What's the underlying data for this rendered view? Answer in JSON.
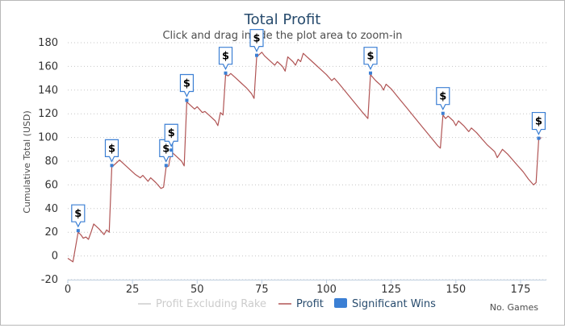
{
  "chart_data": {
    "type": "line",
    "title": "Total Profit",
    "subtitle": "Click and drag inside the plot area to zoom-in",
    "xlabel": "No. Games",
    "ylabel": "Cumulative Total (USD)",
    "xlim": [
      0,
      185
    ],
    "ylim": [
      -20,
      180
    ],
    "x_ticks": [
      0,
      25,
      50,
      75,
      100,
      125,
      150,
      175
    ],
    "y_ticks": [
      -20,
      0,
      20,
      40,
      60,
      80,
      100,
      120,
      140,
      160,
      180
    ],
    "grid": "horizontal-dotted",
    "legend_position": "bottom",
    "legend": [
      {
        "label": "Profit Excluding Rake",
        "color": "#cccccc",
        "type": "line",
        "state": "hidden"
      },
      {
        "label": "Profit",
        "color": "#b05454",
        "type": "line",
        "state": "visible"
      },
      {
        "label": "Significant Wins",
        "color": "#3b7fd4",
        "type": "box",
        "state": "visible"
      }
    ],
    "series": [
      {
        "name": "Profit",
        "color": "#b05454",
        "points": [
          [
            0,
            -2
          ],
          [
            2,
            -5
          ],
          [
            4,
            20
          ],
          [
            5,
            18
          ],
          [
            6,
            15
          ],
          [
            7,
            16
          ],
          [
            8,
            14
          ],
          [
            9,
            20
          ],
          [
            10,
            27
          ],
          [
            12,
            23
          ],
          [
            14,
            18
          ],
          [
            15,
            22
          ],
          [
            16,
            20
          ],
          [
            17,
            75
          ],
          [
            18,
            77
          ],
          [
            19,
            79
          ],
          [
            20,
            81
          ],
          [
            22,
            77
          ],
          [
            24,
            73
          ],
          [
            26,
            69
          ],
          [
            28,
            66
          ],
          [
            29,
            68
          ],
          [
            31,
            63
          ],
          [
            32,
            66
          ],
          [
            34,
            62
          ],
          [
            36,
            57
          ],
          [
            37,
            58
          ],
          [
            38,
            75
          ],
          [
            39,
            76
          ],
          [
            40,
            88
          ],
          [
            42,
            84
          ],
          [
            44,
            80
          ],
          [
            45,
            76
          ],
          [
            46,
            130
          ],
          [
            48,
            126
          ],
          [
            49,
            124
          ],
          [
            50,
            126
          ],
          [
            52,
            121
          ],
          [
            53,
            122
          ],
          [
            55,
            118
          ],
          [
            57,
            114
          ],
          [
            58,
            110
          ],
          [
            59,
            121
          ],
          [
            60,
            119
          ],
          [
            61,
            153
          ],
          [
            62,
            152
          ],
          [
            63,
            154
          ],
          [
            65,
            150
          ],
          [
            67,
            146
          ],
          [
            69,
            142
          ],
          [
            71,
            137
          ],
          [
            72,
            133
          ],
          [
            73,
            168
          ],
          [
            74,
            170
          ],
          [
            75,
            172
          ],
          [
            76,
            169
          ],
          [
            78,
            165
          ],
          [
            80,
            161
          ],
          [
            81,
            164
          ],
          [
            83,
            160
          ],
          [
            84,
            156
          ],
          [
            85,
            168
          ],
          [
            87,
            164
          ],
          [
            88,
            161
          ],
          [
            89,
            166
          ],
          [
            90,
            164
          ],
          [
            91,
            171
          ],
          [
            92,
            169
          ],
          [
            95,
            163
          ],
          [
            98,
            157
          ],
          [
            100,
            153
          ],
          [
            102,
            148
          ],
          [
            103,
            150
          ],
          [
            105,
            145
          ],
          [
            108,
            137
          ],
          [
            111,
            129
          ],
          [
            114,
            121
          ],
          [
            116,
            116
          ],
          [
            117,
            153
          ],
          [
            119,
            148
          ],
          [
            121,
            144
          ],
          [
            122,
            140
          ],
          [
            123,
            145
          ],
          [
            125,
            141
          ],
          [
            128,
            133
          ],
          [
            131,
            125
          ],
          [
            134,
            117
          ],
          [
            137,
            109
          ],
          [
            140,
            101
          ],
          [
            143,
            93
          ],
          [
            144,
            91
          ],
          [
            145,
            119
          ],
          [
            146,
            116
          ],
          [
            147,
            118
          ],
          [
            149,
            114
          ],
          [
            150,
            110
          ],
          [
            151,
            114
          ],
          [
            153,
            110
          ],
          [
            155,
            105
          ],
          [
            156,
            108
          ],
          [
            158,
            104
          ],
          [
            160,
            99
          ],
          [
            162,
            94
          ],
          [
            165,
            88
          ],
          [
            166,
            83
          ],
          [
            168,
            90
          ],
          [
            170,
            86
          ],
          [
            172,
            81
          ],
          [
            174,
            76
          ],
          [
            176,
            71
          ],
          [
            178,
            65
          ],
          [
            180,
            60
          ],
          [
            181,
            62
          ],
          [
            182,
            98
          ],
          [
            183,
            100
          ]
        ]
      }
    ],
    "significant_wins": [
      {
        "x": 4,
        "y": 20,
        "label": "$"
      },
      {
        "x": 17,
        "y": 75,
        "label": "$"
      },
      {
        "x": 38,
        "y": 75,
        "label": "$"
      },
      {
        "x": 40,
        "y": 88,
        "label": "$"
      },
      {
        "x": 46,
        "y": 130,
        "label": "$"
      },
      {
        "x": 61,
        "y": 153,
        "label": "$"
      },
      {
        "x": 73,
        "y": 168,
        "label": "$"
      },
      {
        "x": 117,
        "y": 153,
        "label": "$"
      },
      {
        "x": 145,
        "y": 119,
        "label": "$"
      },
      {
        "x": 182,
        "y": 98,
        "label": "$"
      }
    ]
  }
}
